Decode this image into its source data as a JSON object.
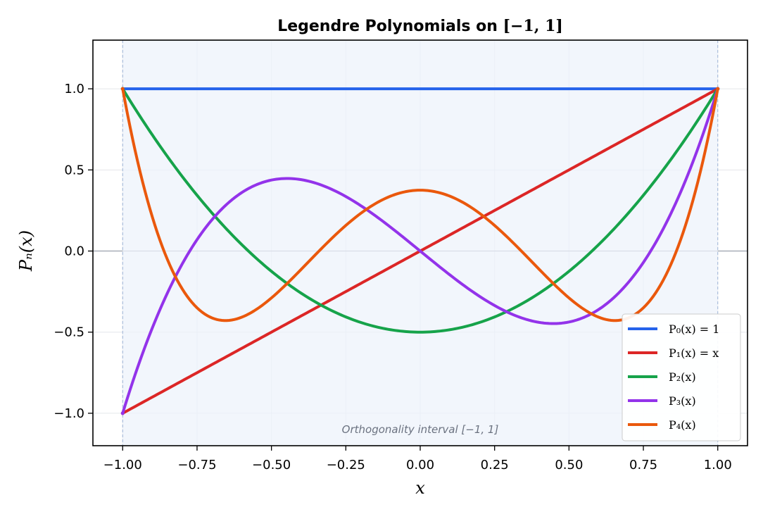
{
  "chart_data": {
    "type": "line",
    "title_prefix": "Legendre Polynomials on ",
    "title_interval": "[−1, 1]",
    "xlabel": "x",
    "ylabel": "Pₙ(x)",
    "xlim": [
      -1.1,
      1.1
    ],
    "ylim": [
      -1.2,
      1.3
    ],
    "x_ticks": [
      -1.0,
      -0.75,
      -0.5,
      -0.25,
      0.0,
      0.25,
      0.5,
      0.75,
      1.0
    ],
    "x_tick_labels": [
      "−1.00",
      "−0.75",
      "−0.50",
      "−0.25",
      "0.00",
      "0.25",
      "0.50",
      "0.75",
      "1.00"
    ],
    "y_ticks": [
      -1.0,
      -0.5,
      0.0,
      0.5,
      1.0
    ],
    "y_tick_labels": [
      "−1.0",
      "−0.5",
      "0.0",
      "0.5",
      "1.0"
    ],
    "grid": true,
    "shaded_interval": [
      -1.0,
      1.0
    ],
    "annotation": "Orthogonality interval [−1, 1]",
    "legend_position": "lower-right",
    "series": [
      {
        "name": "P₀(x) = 1",
        "color": "#2563eb",
        "coefficients": [
          1
        ],
        "endpoints": [
          [
            -1,
            1
          ],
          [
            1,
            1
          ]
        ]
      },
      {
        "name": "P₁(x) = x",
        "color": "#dc2626",
        "coefficients": [
          0,
          1
        ],
        "endpoints": [
          [
            -1,
            -1
          ],
          [
            1,
            1
          ]
        ]
      },
      {
        "name": "P₂(x)",
        "color": "#16a34a",
        "coefficients": [
          -0.5,
          0,
          1.5
        ],
        "endpoints": [
          [
            -1,
            1
          ],
          [
            1,
            1
          ]
        ]
      },
      {
        "name": "P₃(x)",
        "color": "#9333ea",
        "coefficients": [
          0,
          -1.5,
          0,
          2.5
        ],
        "endpoints": [
          [
            -1,
            -1
          ],
          [
            1,
            1
          ]
        ]
      },
      {
        "name": "P₄(x)",
        "color": "#ea580c",
        "coefficients": [
          0.375,
          0,
          -3.75,
          0,
          4.375
        ],
        "endpoints": [
          [
            -1,
            1
          ],
          [
            1,
            1
          ]
        ]
      }
    ]
  }
}
